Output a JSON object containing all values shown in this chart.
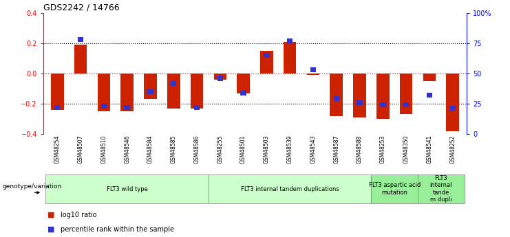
{
  "title": "GDS2242 / 14766",
  "samples": [
    "GSM48254",
    "GSM48507",
    "GSM48510",
    "GSM48546",
    "GSM48584",
    "GSM48585",
    "GSM48586",
    "GSM48255",
    "GSM48501",
    "GSM48503",
    "GSM48539",
    "GSM48543",
    "GSM48587",
    "GSM48588",
    "GSM48253",
    "GSM48350",
    "GSM48541",
    "GSM48252"
  ],
  "log10_ratio": [
    -0.24,
    0.19,
    -0.25,
    -0.25,
    -0.17,
    -0.23,
    -0.23,
    -0.04,
    -0.13,
    0.15,
    0.21,
    -0.01,
    -0.28,
    -0.29,
    -0.3,
    -0.27,
    -0.05,
    -0.38
  ],
  "percentile_rank": [
    22,
    78,
    23,
    22,
    35,
    42,
    22,
    46,
    34,
    65,
    77,
    53,
    29,
    26,
    24,
    24,
    32,
    21
  ],
  "groups": [
    {
      "label": "FLT3 wild type",
      "start": 0,
      "end": 6,
      "color": "#ccffcc"
    },
    {
      "label": "FLT3 internal tandem duplications",
      "start": 7,
      "end": 13,
      "color": "#ccffcc"
    },
    {
      "label": "FLT3 aspartic acid\nmutation",
      "start": 14,
      "end": 15,
      "color": "#99ee99"
    },
    {
      "label": "FLT3\ninternal\ntande\nm dupli",
      "start": 16,
      "end": 17,
      "color": "#99ee99"
    }
  ],
  "ylim_left": [
    -0.4,
    0.4
  ],
  "ylim_right": [
    0,
    100
  ],
  "yticks_left": [
    -0.4,
    -0.2,
    0.0,
    0.2,
    0.4
  ],
  "yticks_right": [
    0,
    25,
    50,
    75,
    100
  ],
  "ytick_labels_right": [
    "0",
    "25",
    "50",
    "75",
    "100%"
  ],
  "bar_color_red": "#cc2200",
  "bar_color_blue": "#3333cc",
  "hline_colors": {
    "dot_black": 0.2,
    "dot_black_neg": -0.2,
    "dot_red": 0.0
  },
  "legend_items": [
    {
      "label": "log10 ratio",
      "color": "#cc2200"
    },
    {
      "label": "percentile rank within the sample",
      "color": "#3333cc"
    }
  ]
}
